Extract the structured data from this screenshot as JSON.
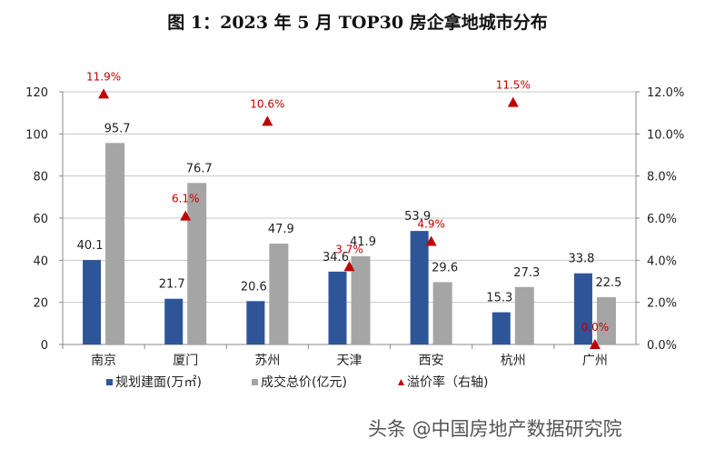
{
  "chart_data": {
    "type": "bar",
    "title": "图 1：2023 年 5 月 TOP30 房企拿地城市分布",
    "categories": [
      "南京",
      "厦门",
      "苏州",
      "天津",
      "西安",
      "杭州",
      "广州"
    ],
    "series": [
      {
        "name": "规划建面(万㎡)",
        "type": "bar",
        "axis": "left",
        "color": "#2E5597",
        "values": [
          40.1,
          21.7,
          20.6,
          34.6,
          53.9,
          15.3,
          33.8
        ],
        "labels": [
          "40.1",
          "21.7",
          "20.6",
          "34.6",
          "53.9",
          "15.3",
          "33.8"
        ]
      },
      {
        "name": "成交总价(亿元)",
        "type": "bar",
        "axis": "left",
        "color": "#A5A5A5",
        "values": [
          95.7,
          76.7,
          47.9,
          41.9,
          29.6,
          27.3,
          22.5
        ],
        "labels": [
          "95.7",
          "76.7",
          "47.9",
          "41.9",
          "29.6",
          "27.3",
          "22.5"
        ]
      },
      {
        "name": "溢价率（右轴)",
        "type": "scatter",
        "axis": "right",
        "color": "#C00000",
        "values": [
          11.9,
          6.1,
          10.6,
          3.7,
          4.9,
          11.5,
          0.0
        ],
        "labels": [
          "11.9%",
          "6.1%",
          "10.6%",
          "3.7%",
          "4.9%",
          "11.5%",
          "0.0%"
        ]
      }
    ],
    "ylim": [
      0,
      120
    ],
    "yticks": [
      "0",
      "20",
      "40",
      "60",
      "80",
      "100",
      "120"
    ],
    "y2lim": [
      0,
      12
    ],
    "y2ticks": [
      "0.0%",
      "2.0%",
      "4.0%",
      "6.0%",
      "8.0%",
      "10.0%",
      "12.0%"
    ],
    "grid": true,
    "legend": "bottom"
  },
  "legend": {
    "s1": "规划建面(万㎡)",
    "s2": "成交总价(亿元)",
    "s3": "溢价率（右轴)"
  },
  "watermark": "头条 @中国房地产数据研究院"
}
